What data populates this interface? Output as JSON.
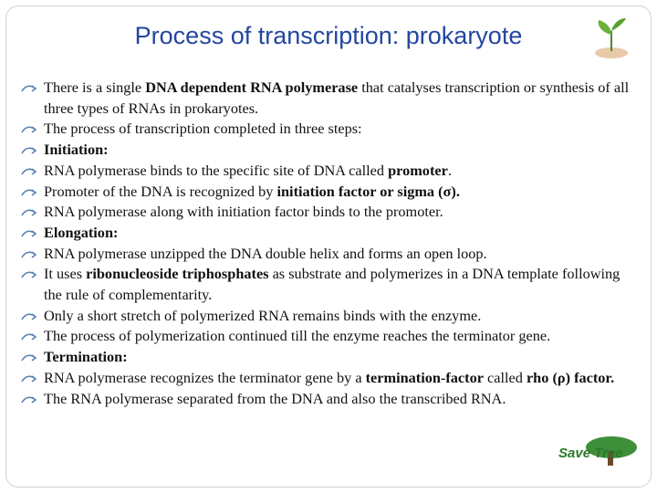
{
  "title": "Process of transcription: prokaryote",
  "bullets": [
    [
      {
        "t": "There is a single "
      },
      {
        "t": "DNA dependent RNA polymerase",
        "b": true
      },
      {
        "t": " that catalyses transcription or synthesis of all three types of RNAs in prokaryotes."
      }
    ],
    [
      {
        "t": "The process of transcription completed in three steps:"
      }
    ],
    [
      {
        "t": "Initiation:",
        "b": true
      }
    ],
    [
      {
        "t": "RNA polymerase binds to the specific site of DNA called "
      },
      {
        "t": "promoter",
        "b": true
      },
      {
        "t": "."
      }
    ],
    [
      {
        "t": "Promoter of the DNA is recognized by "
      },
      {
        "t": "initiation factor or sigma (σ).",
        "b": true
      }
    ],
    [
      {
        "t": "RNA polymerase along with initiation factor binds to the promoter."
      }
    ],
    [
      {
        "t": "Elongation:",
        "b": true
      }
    ],
    [
      {
        "t": "RNA polymerase unzipped the DNA double helix and forms an open loop."
      }
    ],
    [
      {
        "t": "It uses "
      },
      {
        "t": "ribonucleoside triphosphates",
        "b": true
      },
      {
        "t": " as substrate and polymerizes in a DNA template following the rule of complementarity."
      }
    ],
    [
      {
        "t": "Only a short stretch of polymerized RNA remains binds with the enzyme."
      }
    ],
    [
      {
        "t": "The process of polymerization continued till the enzyme reaches the terminator gene."
      }
    ],
    [
      {
        "t": "Termination:",
        "b": true
      }
    ],
    [
      {
        "t": "RNA polymerase recognizes the terminator gene by a "
      },
      {
        "t": "termination-factor",
        "b": true
      },
      {
        "t": " called "
      },
      {
        "t": "rho (ρ) factor.",
        "b": true
      }
    ],
    [
      {
        "t": "The RNA polymerase separated from the DNA and also the transcribed RNA."
      }
    ]
  ],
  "logo": "Save Tree"
}
